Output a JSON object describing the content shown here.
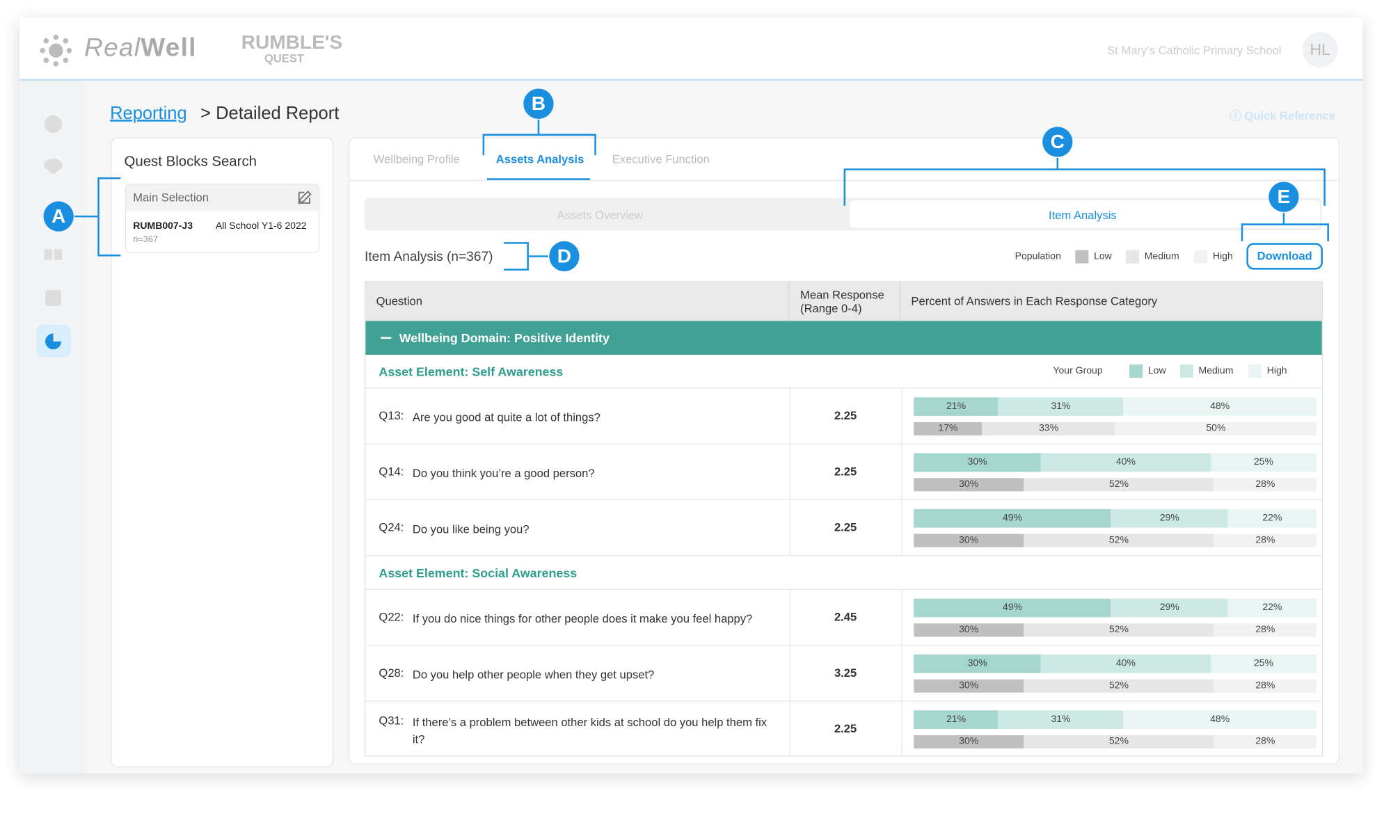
{
  "header": {
    "brand_real": "Real",
    "brand_well": "Well",
    "game_logo_top": "RUMBLE'S",
    "game_logo_bottom": "QUEST",
    "school": "St Mary’s Catholic Primary School",
    "avatar": "HL"
  },
  "breadcrumb": {
    "link": "Reporting",
    "current": "> Detailed Report"
  },
  "quick_reference": "Quick Reference",
  "search_panel": {
    "title": "Quest Blocks Search",
    "selection_title": "Main Selection",
    "code": "RUMB007-J3",
    "group": "All School Y1-6 2022",
    "n": "n=367"
  },
  "tabs": [
    "Wellbeing Profile",
    "Assets Analysis",
    "Executive Function"
  ],
  "subtabs": [
    "Assets Overview",
    "Item Analysis"
  ],
  "section_title": "Item Analysis (n=367)",
  "population_legend": {
    "label": "Population",
    "items": [
      "Low",
      "Medium",
      "High"
    ]
  },
  "download": "Download",
  "table": {
    "columns": [
      "Question",
      "Mean Response (Range 0-4)",
      "Percent of Answers in Each Response Category"
    ],
    "domain": "Wellbeing Domain: Positive Identity",
    "group_legend": {
      "label": "Your Group",
      "items": [
        "Low",
        "Medium",
        "High"
      ]
    },
    "elements": [
      {
        "title": "Asset Element: Self Awareness",
        "rows": [
          {
            "id": "Q13:",
            "question": "Are you good at quite a lot of things?",
            "mean": "2.25",
            "group": {
              "values": [
                21,
                31,
                48
              ],
              "value_labels": [
                "21%",
                "31%",
                "48%"
              ]
            },
            "population": {
              "values": [
                17,
                33,
                50
              ],
              "value_labels": [
                "17%",
                "33%",
                "50%"
              ]
            }
          },
          {
            "id": "Q14:",
            "question": "Do you think you’re a good person?",
            "mean": "2.25",
            "group": {
              "values": [
                30,
                40,
                25
              ],
              "value_labels": [
                "30%",
                "40%",
                "25%"
              ]
            },
            "population": {
              "values": [
                30,
                52,
                28
              ],
              "value_labels": [
                "30%",
                "52%",
                "28%"
              ]
            }
          },
          {
            "id": "Q24:",
            "question": "Do you like being you?",
            "mean": "2.25",
            "group": {
              "values": [
                49,
                29,
                22
              ],
              "value_labels": [
                "49%",
                "29%",
                "22%"
              ]
            },
            "population": {
              "values": [
                30,
                52,
                28
              ],
              "value_labels": [
                "30%",
                "52%",
                "28%"
              ]
            }
          }
        ]
      },
      {
        "title": "Asset Element: Social Awareness",
        "rows": [
          {
            "id": "Q22:",
            "question": "If you do nice things for other people does it make you feel happy?",
            "mean": "2.45",
            "group": {
              "values": [
                49,
                29,
                22
              ],
              "value_labels": [
                "49%",
                "29%",
                "22%"
              ]
            },
            "population": {
              "values": [
                30,
                52,
                28
              ],
              "value_labels": [
                "30%",
                "52%",
                "28%"
              ]
            }
          },
          {
            "id": "Q28:",
            "question": "Do you help other people when they get upset?",
            "mean": "3.25",
            "group": {
              "values": [
                30,
                40,
                25
              ],
              "value_labels": [
                "30%",
                "40%",
                "25%"
              ]
            },
            "population": {
              "values": [
                30,
                52,
                28
              ],
              "value_labels": [
                "30%",
                "52%",
                "28%"
              ]
            }
          },
          {
            "id": "Q31:",
            "question": "If there’s a problem between other kids at school do you help them fix it?",
            "mean": "2.25",
            "group": {
              "values": [
                21,
                31,
                48
              ],
              "value_labels": [
                "21%",
                "31%",
                "48%"
              ]
            },
            "population": {
              "values": [
                30,
                52,
                28
              ],
              "value_labels": [
                "30%",
                "52%",
                "28%"
              ]
            }
          }
        ]
      }
    ]
  },
  "annotations": [
    "A",
    "B",
    "C",
    "D",
    "E"
  ]
}
